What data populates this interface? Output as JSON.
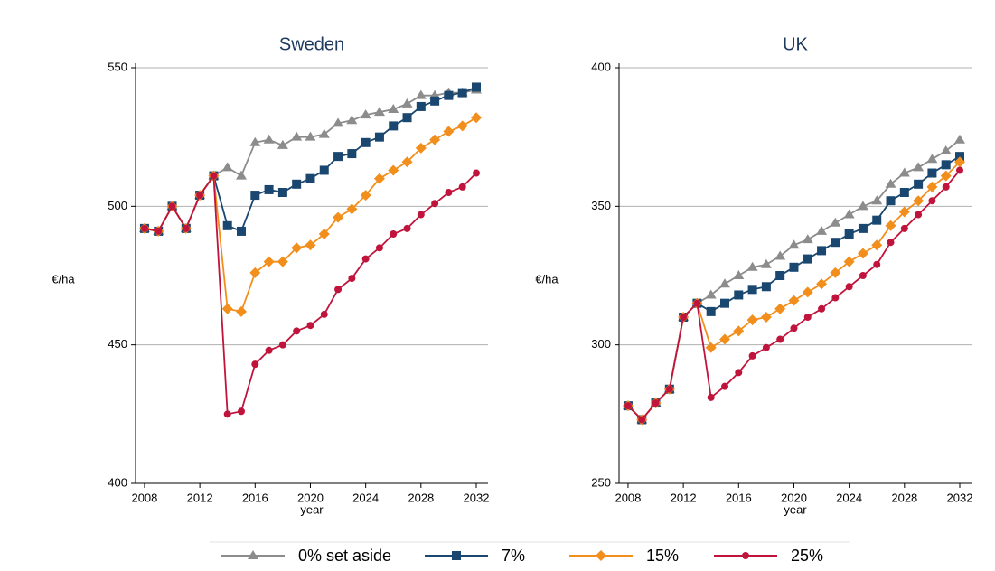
{
  "chart_data": [
    {
      "type": "line",
      "title": "Sweden",
      "x_label": "year",
      "y_label": "€/ha",
      "x": [
        2008,
        2009,
        2010,
        2011,
        2012,
        2013,
        2014,
        2015,
        2016,
        2017,
        2018,
        2019,
        2020,
        2021,
        2022,
        2023,
        2024,
        2025,
        2026,
        2027,
        2028,
        2029,
        2030,
        2031,
        2032
      ],
      "xlim": [
        2007.35,
        2032.85
      ],
      "xticks": [
        2008,
        2012,
        2016,
        2020,
        2024,
        2028,
        2032
      ],
      "ylim": [
        400,
        550
      ],
      "yticks": [
        400,
        450,
        500,
        550
      ],
      "grid": true,
      "series": [
        {
          "name": "0% set aside",
          "color": "#8c8c8c",
          "marker": "triangle",
          "values": [
            492,
            491,
            500,
            492,
            504,
            511,
            514,
            511,
            523,
            524,
            522,
            525,
            525,
            526,
            530,
            531,
            533,
            534,
            535,
            537,
            540,
            540,
            541,
            541,
            542
          ]
        },
        {
          "name": "7%",
          "color": "#1a476f",
          "marker": "square",
          "values": [
            492,
            491,
            500,
            492,
            504,
            511,
            493,
            491,
            504,
            506,
            505,
            508,
            510,
            513,
            518,
            519,
            523,
            525,
            529,
            532,
            536,
            538,
            540,
            541,
            543
          ]
        },
        {
          "name": "15%",
          "color": "#f28e1c",
          "marker": "diamond",
          "values": [
            492,
            491,
            500,
            492,
            504,
            511,
            463,
            462,
            476,
            480,
            480,
            485,
            486,
            490,
            496,
            499,
            504,
            510,
            513,
            516,
            521,
            524,
            527,
            529,
            532
          ]
        },
        {
          "name": "25%",
          "color": "#c0143c",
          "marker": "circle",
          "values": [
            492,
            491,
            500,
            492,
            504,
            511,
            425,
            426,
            443,
            448,
            450,
            455,
            457,
            461,
            470,
            474,
            481,
            485,
            490,
            492,
            497,
            501,
            505,
            507,
            512
          ]
        }
      ]
    },
    {
      "type": "line",
      "title": "UK",
      "x_label": "year",
      "y_label": "€/ha",
      "x": [
        2008,
        2009,
        2010,
        2011,
        2012,
        2013,
        2014,
        2015,
        2016,
        2017,
        2018,
        2019,
        2020,
        2021,
        2022,
        2023,
        2024,
        2025,
        2026,
        2027,
        2028,
        2029,
        2030,
        2031,
        2032
      ],
      "xlim": [
        2007.35,
        2032.85
      ],
      "xticks": [
        2008,
        2012,
        2016,
        2020,
        2024,
        2028,
        2032
      ],
      "ylim": [
        250,
        400
      ],
      "yticks": [
        250,
        300,
        350,
        400
      ],
      "grid": true,
      "series": [
        {
          "color": "#8c8c8c",
          "marker": "triangle",
          "values": [
            278,
            273,
            279,
            284,
            310,
            315,
            318,
            322,
            325,
            328,
            329,
            332,
            336,
            338,
            341,
            344,
            347,
            350,
            352,
            358,
            362,
            364,
            367,
            370,
            374
          ]
        },
        {
          "color": "#1a476f",
          "marker": "square",
          "values": [
            278,
            273,
            279,
            284,
            310,
            315,
            312,
            315,
            318,
            320,
            321,
            325,
            328,
            331,
            334,
            337,
            340,
            342,
            345,
            352,
            355,
            358,
            362,
            365,
            368
          ]
        },
        {
          "color": "#f28e1c",
          "marker": "diamond",
          "values": [
            278,
            273,
            279,
            284,
            310,
            315,
            299,
            302,
            305,
            309,
            310,
            313,
            316,
            319,
            322,
            326,
            330,
            333,
            336,
            343,
            348,
            352,
            357,
            361,
            366
          ]
        },
        {
          "color": "#c0143c",
          "marker": "circle",
          "values": [
            278,
            273,
            279,
            284,
            310,
            315,
            281,
            285,
            290,
            296,
            299,
            302,
            306,
            310,
            313,
            317,
            321,
            325,
            329,
            337,
            342,
            347,
            352,
            357,
            363
          ]
        }
      ]
    }
  ]
}
